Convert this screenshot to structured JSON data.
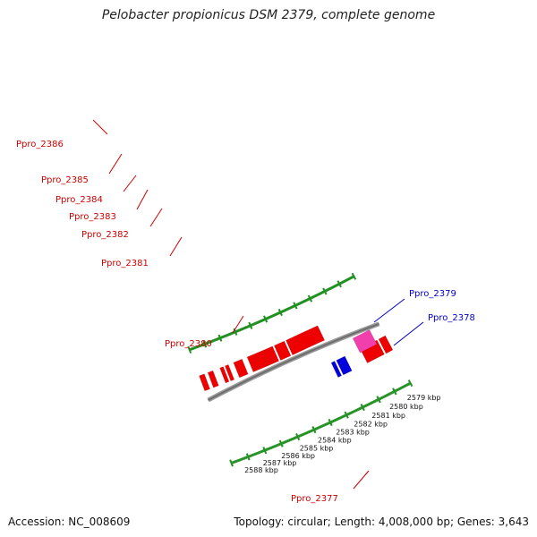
{
  "title": "Pelobacter propionicus DSM 2379, complete genome",
  "accession_label": "Accession: NC_008609",
  "summary_label": "Topology: circular; Length: 4,008,000 bp; Genes: 3,643",
  "colors": {
    "backbone": "#8c8c8c",
    "tick": "#1f8f1f",
    "gene_red": "#ee0000",
    "gene_blue": "#0000dd",
    "gene_pink": "#f23fae",
    "label_red": "#cc0000",
    "label_blue": "#0000cc"
  },
  "scale_ticks": [
    "2588 kbp",
    "2587 kbp",
    "2586 kbp",
    "2585 kbp",
    "2584 kbp",
    "2583 kbp",
    "2582 kbp",
    "2581 kbp",
    "2580 kbp",
    "2579 kbp"
  ],
  "gene_labels": [
    {
      "text": "Ppro_2386",
      "color": "red"
    },
    {
      "text": "Ppro_2385",
      "color": "red"
    },
    {
      "text": "Ppro_2384",
      "color": "red"
    },
    {
      "text": "Ppro_2383",
      "color": "red"
    },
    {
      "text": "Ppro_2382",
      "color": "red"
    },
    {
      "text": "Ppro_2381",
      "color": "red"
    },
    {
      "text": "Ppro_2380",
      "color": "red"
    },
    {
      "text": "Ppro_2377",
      "color": "red"
    },
    {
      "text": "Ppro_2379",
      "color": "blue"
    },
    {
      "text": "Ppro_2378",
      "color": "blue"
    }
  ]
}
